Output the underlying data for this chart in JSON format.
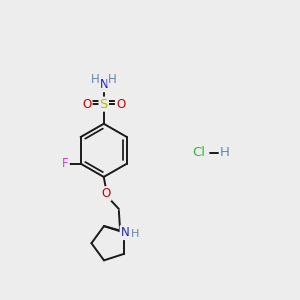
{
  "bg_color": "#ededee",
  "bond_color": "#1a1a1a",
  "bond_width": 1.4,
  "dbo": 0.016,
  "atom_colors": {
    "N": "#2222cc",
    "N_h": "#6688aa",
    "S": "#bbbb00",
    "O": "#cc0000",
    "F": "#cc44cc",
    "Cl": "#33bb33",
    "H": "#6688aa"
  },
  "fs": 8.5,
  "fs_hcl": 9.5
}
